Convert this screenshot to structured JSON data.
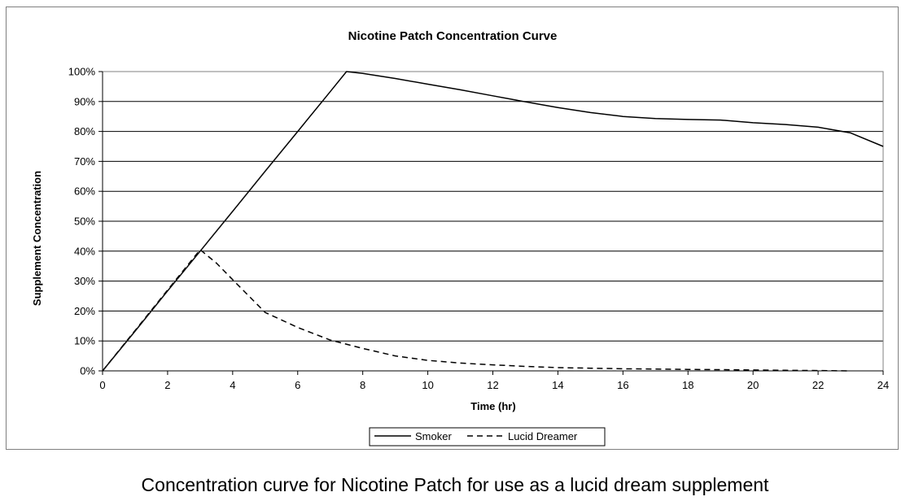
{
  "chart_data": {
    "type": "line",
    "title": "Nicotine Patch Concentration Curve",
    "xlabel": "Time (hr)",
    "ylabel": "Supplement Concentration",
    "xlim": [
      0,
      24
    ],
    "ylim": [
      0,
      100
    ],
    "x_ticks": [
      "0",
      "2",
      "4",
      "6",
      "8",
      "10",
      "12",
      "14",
      "16",
      "18",
      "20",
      "22",
      "24"
    ],
    "y_ticks": [
      "0%",
      "10%",
      "20%",
      "30%",
      "40%",
      "50%",
      "60%",
      "70%",
      "80%",
      "90%",
      "100%"
    ],
    "grid": "horizontal",
    "legend_position": "bottom",
    "series": [
      {
        "name": "Smoker",
        "line_style": "solid",
        "color": "#000000",
        "x": [
          0,
          1,
          2,
          3,
          4,
          5,
          6,
          7,
          7.5,
          8,
          9,
          10,
          11,
          12,
          13,
          14,
          15,
          16,
          17,
          18,
          19,
          20,
          21,
          22,
          23,
          24
        ],
        "y": [
          0,
          13.3,
          26.7,
          40,
          53.3,
          66.7,
          80,
          93.3,
          100,
          99.4,
          97.7,
          95.8,
          93.9,
          91.9,
          89.9,
          88,
          86.3,
          85,
          84.3,
          84,
          83.8,
          82.9,
          82.3,
          81.4,
          79.5,
          75
        ]
      },
      {
        "name": "Lucid Dreamer",
        "line_style": "dashed",
        "color": "#000000",
        "x": [
          0,
          1,
          2,
          3,
          3.5,
          4,
          5,
          6,
          7,
          8,
          9,
          10,
          11,
          12,
          13,
          14,
          15,
          16,
          17,
          18,
          19,
          20,
          21,
          22,
          23
        ],
        "y": [
          0,
          13.5,
          27,
          40.5,
          36,
          30.5,
          19.5,
          14.5,
          10.3,
          7.5,
          5,
          3.5,
          2.6,
          2,
          1.5,
          1.1,
          0.9,
          0.7,
          0.6,
          0.5,
          0.4,
          0.3,
          0.2,
          0.1,
          0
        ]
      }
    ]
  },
  "caption": "Concentration curve for Nicotine Patch for use as a lucid dream supplement"
}
